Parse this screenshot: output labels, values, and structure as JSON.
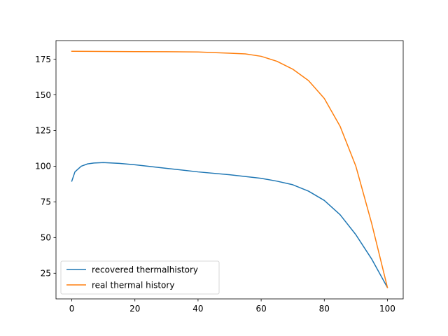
{
  "chart_data": {
    "type": "line",
    "title": "",
    "xlabel": "",
    "ylabel": "",
    "xlim": [
      -5,
      105
    ],
    "ylim": [
      7,
      188
    ],
    "xticks": [
      0,
      20,
      40,
      60,
      80,
      100
    ],
    "yticks": [
      25,
      50,
      75,
      100,
      125,
      150,
      175
    ],
    "grid": false,
    "legend_position": "lower-left",
    "series": [
      {
        "name": "recovered thermalhistory",
        "color": "#1f77b4",
        "x": [
          0,
          1,
          2,
          3,
          5,
          7,
          10,
          15,
          20,
          30,
          40,
          50,
          60,
          65,
          70,
          75,
          80,
          85,
          90,
          95,
          100
        ],
        "y": [
          89.5,
          96,
          98,
          100,
          101.6,
          102.2,
          102.5,
          102,
          101,
          98.5,
          96,
          94,
          91.5,
          89.5,
          87,
          82.5,
          76,
          66,
          52,
          35,
          15
        ]
      },
      {
        "name": "real thermal history",
        "color": "#ff7f0e",
        "x": [
          0,
          10,
          20,
          30,
          40,
          50,
          55,
          60,
          65,
          70,
          75,
          80,
          85,
          90,
          95,
          100
        ],
        "y": [
          180.5,
          180.4,
          180.3,
          180.2,
          180,
          179.2,
          178.7,
          177,
          173.5,
          168,
          160,
          147.5,
          128,
          100,
          60,
          15
        ]
      }
    ]
  }
}
